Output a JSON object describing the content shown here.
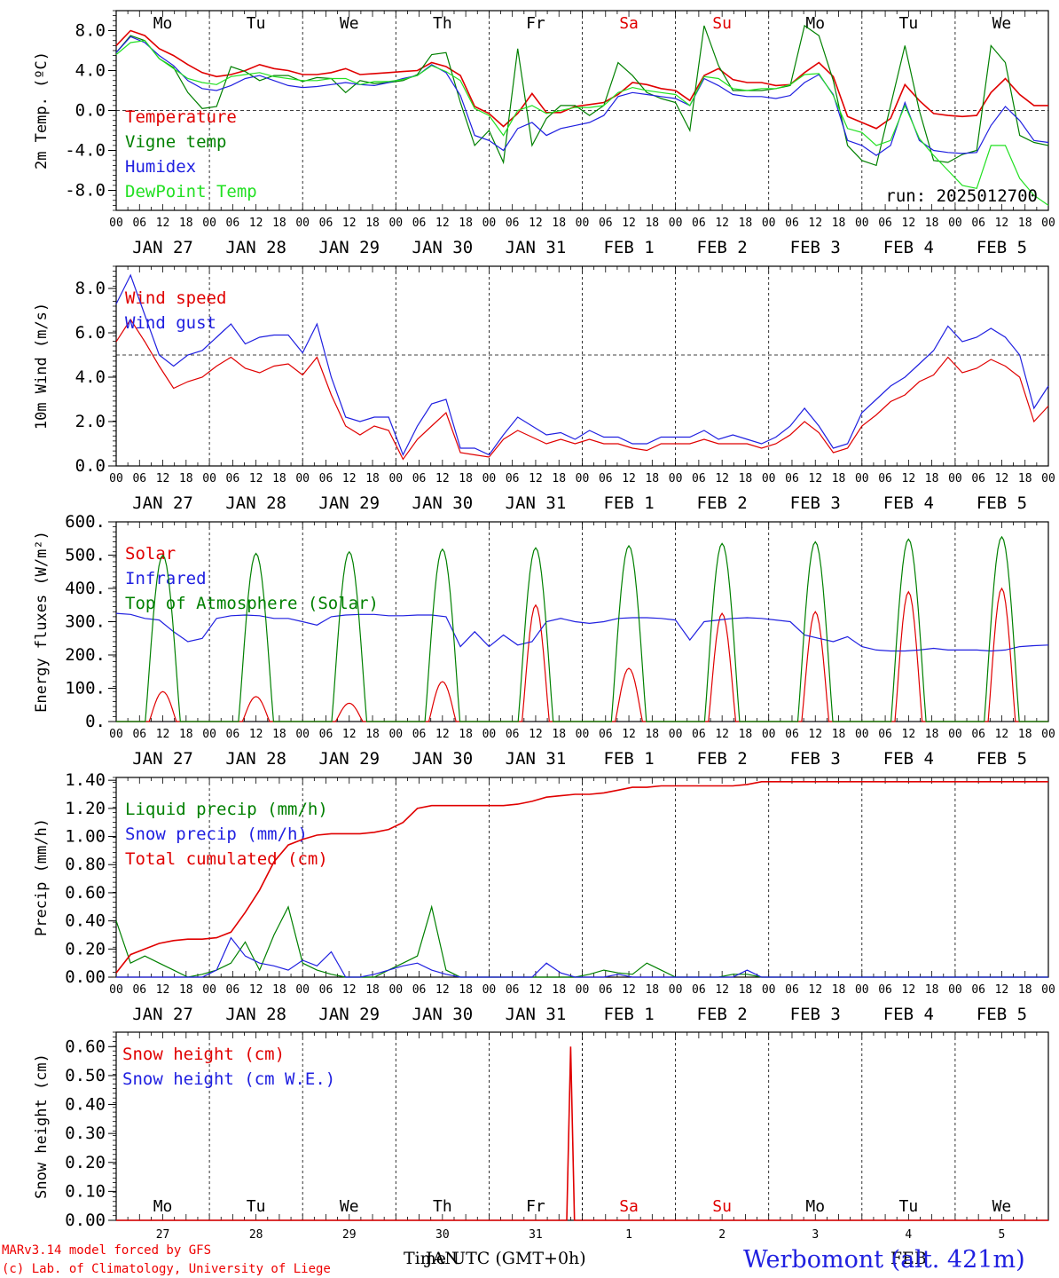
{
  "chart_data": [
    {
      "type": "line",
      "ylabel": "2m Temp. (ºC)",
      "ylim": [
        -10,
        10
      ],
      "yticks": [
        "8.0",
        "4.0",
        "0.0",
        "-4.0",
        "-8.0"
      ],
      "ytick_values": [
        8,
        4,
        0,
        -4,
        -8
      ],
      "ref_line": 0,
      "annotation": "run: 2025012700",
      "day_names": [
        "Mo",
        "Tu",
        "We",
        "Th",
        "Fr",
        "Sa",
        "Su",
        "Mo",
        "Tu",
        "We"
      ],
      "day_name_colors": [
        "#000000",
        "#000000",
        "#000000",
        "#000000",
        "#000000",
        "#e00000",
        "#e00000",
        "#000000",
        "#000000",
        "#000000"
      ],
      "date_labels": [
        "JAN 27",
        "JAN 28",
        "JAN 29",
        "JAN 30",
        "JAN 31",
        "FEB  1",
        "FEB  2",
        "FEB  3",
        "FEB  4",
        "FEB  5"
      ],
      "hour_ticks": [
        "00",
        "06",
        "12",
        "18"
      ],
      "x_hours_start": 0,
      "x_hours_step": 6,
      "series": [
        {
          "name": "Temperature",
          "color": "#e00000",
          "values": [
            6.5,
            8.0,
            7.5,
            6.2,
            5.5,
            4.6,
            3.8,
            3.4,
            3.6,
            4.0,
            4.6,
            4.2,
            4.0,
            3.6,
            3.6,
            3.8,
            4.2,
            3.6,
            3.7,
            3.8,
            3.9,
            4.0,
            4.8,
            4.4,
            3.5,
            0.4,
            -0.3,
            -1.6,
            -0.3,
            1.7,
            -0.2,
            -0.2,
            0.4,
            0.6,
            0.8,
            1.6,
            2.8,
            2.6,
            2.2,
            2.0,
            1.0,
            3.5,
            4.2,
            3.1,
            2.8,
            2.8,
            2.5,
            2.6,
            3.8,
            4.8,
            3.4,
            -0.6,
            -1.2,
            -1.8,
            -0.8,
            2.6,
            1.0,
            -0.3,
            -0.5,
            -0.6,
            -0.5,
            1.8,
            3.2,
            1.6,
            0.5,
            0.5
          ]
        },
        {
          "name": "Vigne temp",
          "color": "#008000",
          "values": [
            5.8,
            7.5,
            7.0,
            5.2,
            4.3,
            1.8,
            0.2,
            0.4,
            4.4,
            3.9,
            3.0,
            3.5,
            3.5,
            2.9,
            3.3,
            3.2,
            1.8,
            3.0,
            2.7,
            2.8,
            3.0,
            3.6,
            5.6,
            5.8,
            0.8,
            -3.5,
            -2.0,
            -5.2,
            6.2,
            -3.5,
            -0.8,
            0.5,
            0.5,
            -0.5,
            0.5,
            4.8,
            3.5,
            1.8,
            1.2,
            0.8,
            -2.0,
            8.5,
            4.5,
            2.0,
            2.0,
            2.0,
            2.2,
            2.5,
            8.5,
            7.5,
            3.0,
            -3.5,
            -5.0,
            -5.5,
            0.5,
            6.5,
            0.0,
            -5.0,
            -5.2,
            -4.4,
            -4.0,
            6.5,
            4.8,
            -2.5,
            -3.2,
            -3.5
          ]
        },
        {
          "name": "Humidex",
          "color": "#2020e0",
          "values": [
            5.8,
            7.4,
            6.8,
            5.5,
            4.5,
            3.0,
            2.2,
            2.0,
            2.5,
            3.2,
            3.5,
            3.0,
            2.5,
            2.3,
            2.4,
            2.6,
            2.8,
            2.6,
            2.5,
            2.8,
            3.2,
            3.5,
            4.6,
            3.8,
            1.5,
            -2.5,
            -3.0,
            -4.0,
            -1.8,
            -1.2,
            -2.5,
            -1.8,
            -1.5,
            -1.2,
            -0.5,
            1.4,
            1.8,
            1.6,
            1.4,
            1.2,
            0.5,
            3.2,
            2.5,
            1.6,
            1.4,
            1.4,
            1.2,
            1.5,
            2.8,
            3.6,
            1.6,
            -3.0,
            -3.5,
            -4.5,
            -3.5,
            0.8,
            -3.0,
            -4.0,
            -4.2,
            -4.3,
            -4.2,
            -1.5,
            0.4,
            -1.0,
            -3.0,
            -3.2
          ]
        },
        {
          "name": "DewPoint Temp",
          "color": "#22e022",
          "values": [
            5.6,
            6.8,
            7.0,
            5.2,
            4.2,
            3.2,
            2.8,
            2.6,
            3.4,
            3.6,
            3.8,
            3.4,
            3.2,
            3.0,
            3.0,
            3.2,
            3.2,
            2.6,
            2.9,
            2.9,
            3.1,
            3.5,
            4.5,
            3.9,
            3.0,
            0.2,
            -0.5,
            -2.5,
            0.0,
            0.5,
            -0.3,
            0.0,
            0.3,
            0.3,
            0.5,
            1.8,
            2.3,
            2.0,
            1.8,
            1.6,
            0.5,
            3.4,
            3.2,
            2.2,
            2.0,
            2.2,
            2.2,
            2.6,
            3.6,
            3.7,
            1.5,
            -1.8,
            -2.2,
            -3.5,
            -3.0,
            0.5,
            -2.8,
            -4.5,
            -6.0,
            -7.5,
            -7.8,
            -3.5,
            -3.5,
            -6.8,
            -8.5,
            -9.5
          ]
        }
      ]
    },
    {
      "type": "line",
      "ylabel": "10m Wind (m/s)",
      "ylim": [
        0,
        9
      ],
      "yticks": [
        "8.0",
        "6.0",
        "4.0",
        "2.0",
        "0.0"
      ],
      "ytick_values": [
        8,
        6,
        4,
        2,
        0
      ],
      "ref_line": 5,
      "date_labels": [
        "JAN 27",
        "JAN 28",
        "JAN 29",
        "JAN 30",
        "JAN 31",
        "FEB  1",
        "FEB  2",
        "FEB  3",
        "FEB  4",
        "FEB  5"
      ],
      "hour_ticks": [
        "00",
        "06",
        "12",
        "18"
      ],
      "series": [
        {
          "name": "Wind speed",
          "color": "#e00000",
          "values": [
            5.6,
            6.6,
            5.6,
            4.5,
            3.5,
            3.8,
            4.0,
            4.5,
            4.9,
            4.4,
            4.2,
            4.5,
            4.6,
            4.1,
            4.9,
            3.2,
            1.8,
            1.4,
            1.8,
            1.6,
            0.3,
            1.2,
            1.8,
            2.4,
            0.6,
            0.5,
            0.4,
            1.2,
            1.6,
            1.3,
            1.0,
            1.2,
            1.0,
            1.2,
            1.0,
            1.0,
            0.8,
            0.7,
            1.0,
            1.0,
            1.0,
            1.2,
            1.0,
            1.0,
            1.0,
            0.8,
            1.0,
            1.4,
            2.0,
            1.5,
            0.6,
            0.8,
            1.8,
            2.3,
            2.9,
            3.2,
            3.8,
            4.1,
            4.9,
            4.2,
            4.4,
            4.8,
            4.5,
            4.0,
            2.0,
            2.7
          ]
        },
        {
          "name": "Wind gust",
          "color": "#2020e0",
          "values": [
            7.3,
            8.6,
            6.8,
            5.0,
            4.5,
            5.0,
            5.2,
            5.8,
            6.4,
            5.5,
            5.8,
            5.9,
            5.9,
            5.1,
            6.4,
            4.0,
            2.2,
            2.0,
            2.2,
            2.2,
            0.5,
            1.8,
            2.8,
            3.0,
            0.8,
            0.8,
            0.5,
            1.4,
            2.2,
            1.8,
            1.4,
            1.5,
            1.2,
            1.6,
            1.3,
            1.3,
            1.0,
            1.0,
            1.3,
            1.3,
            1.3,
            1.6,
            1.2,
            1.4,
            1.2,
            1.0,
            1.3,
            1.8,
            2.6,
            1.8,
            0.8,
            1.0,
            2.4,
            3.0,
            3.6,
            4.0,
            4.6,
            5.2,
            6.3,
            5.6,
            5.8,
            6.2,
            5.8,
            5.0,
            2.6,
            3.6
          ]
        }
      ]
    },
    {
      "type": "line",
      "ylabel": "Energy fluxes (W/m²)",
      "ylim": [
        0,
        600
      ],
      "yticks": [
        "600.",
        "500.",
        "400.",
        "300.",
        "200.",
        "100.",
        "0."
      ],
      "ytick_values": [
        600,
        500,
        400,
        300,
        200,
        100,
        0
      ],
      "date_labels": [
        "JAN 27",
        "JAN 28",
        "JAN 29",
        "JAN 30",
        "JAN 31",
        "FEB  1",
        "FEB  2",
        "FEB  3",
        "FEB  4",
        "FEB  5"
      ],
      "hour_ticks": [
        "00",
        "06",
        "12",
        "18"
      ],
      "series": [
        {
          "name": "Solar",
          "color": "#e00000",
          "peaks": [
            90,
            75,
            55,
            120,
            350,
            160,
            325,
            330,
            390,
            400
          ]
        },
        {
          "name": "Infrared",
          "color": "#2020e0",
          "values": [
            325,
            322,
            310,
            305,
            270,
            240,
            250,
            310,
            318,
            320,
            318,
            310,
            310,
            300,
            290,
            315,
            320,
            322,
            322,
            318,
            318,
            320,
            320,
            315,
            225,
            270,
            225,
            260,
            230,
            240,
            300,
            310,
            300,
            295,
            300,
            310,
            312,
            312,
            310,
            305,
            245,
            300,
            305,
            310,
            312,
            310,
            305,
            300,
            260,
            250,
            240,
            255,
            225,
            215,
            212,
            212,
            215,
            220,
            215,
            215,
            215,
            212,
            215,
            225,
            228,
            230
          ]
        },
        {
          "name": "Top of Atmosphere (Solar)",
          "color": "#008000",
          "peaks": [
            500,
            505,
            510,
            518,
            522,
            528,
            535,
            540,
            548,
            555
          ]
        }
      ]
    },
    {
      "type": "line",
      "ylabel": "Precip (mm/h)",
      "ylim": [
        0,
        1.42
      ],
      "yticks": [
        "1.40",
        "1.20",
        "1.00",
        "0.80",
        "0.60",
        "0.40",
        "0.20",
        "0.00"
      ],
      "ytick_values": [
        1.4,
        1.2,
        1.0,
        0.8,
        0.6,
        0.4,
        0.2,
        0
      ],
      "date_labels": [
        "JAN 27",
        "JAN 28",
        "JAN 29",
        "JAN 30",
        "JAN 31",
        "FEB  1",
        "FEB  2",
        "FEB  3",
        "FEB  4",
        "FEB  5"
      ],
      "hour_ticks": [
        "00",
        "06",
        "12",
        "18"
      ],
      "series": [
        {
          "name": "Liquid precip (mm/h)",
          "color": "#008000",
          "values": [
            0.4,
            0.1,
            0.15,
            0.1,
            0.05,
            0.0,
            0.02,
            0.05,
            0.1,
            0.25,
            0.05,
            0.3,
            0.5,
            0.1,
            0.05,
            0.02,
            0.0,
            0.0,
            0.0,
            0.05,
            0.1,
            0.15,
            0.5,
            0.05,
            0.0,
            0.0,
            0.0,
            0.0,
            0.0,
            0.0,
            0.0,
            0.0,
            0.0,
            0.02,
            0.05,
            0.03,
            0.02,
            0.1,
            0.05,
            0.0,
            0.0,
            0.0,
            0.0,
            0.02,
            0.02,
            0.0,
            0.0,
            0.0,
            0.0,
            0.0,
            0.0,
            0.0,
            0.0,
            0.0,
            0.0,
            0.0,
            0.0,
            0.0,
            0.0,
            0.0,
            0.0,
            0.0,
            0.0,
            0.0,
            0.0,
            0.0
          ]
        },
        {
          "name": "Snow precip (mm/h)",
          "color": "#2020e0",
          "values": [
            0.0,
            0.0,
            0.0,
            0.0,
            0.0,
            0.0,
            0.0,
            0.05,
            0.28,
            0.15,
            0.1,
            0.08,
            0.05,
            0.12,
            0.08,
            0.18,
            0.0,
            0.0,
            0.02,
            0.05,
            0.08,
            0.1,
            0.05,
            0.02,
            0.0,
            0.0,
            0.0,
            0.0,
            0.0,
            0.0,
            0.1,
            0.03,
            0.0,
            0.0,
            0.0,
            0.02,
            0.0,
            0.0,
            0.0,
            0.0,
            0.0,
            0.0,
            0.0,
            0.0,
            0.05,
            0.0,
            0.0,
            0.0,
            0.0,
            0.0,
            0.0,
            0.0,
            0.0,
            0.0,
            0.0,
            0.0,
            0.0,
            0.0,
            0.0,
            0.0,
            0.0,
            0.0,
            0.0,
            0.0,
            0.0,
            0.0
          ]
        },
        {
          "name": "Total cumulated (cm)",
          "color": "#e00000",
          "values": [
            0.03,
            0.16,
            0.2,
            0.24,
            0.26,
            0.27,
            0.27,
            0.28,
            0.32,
            0.46,
            0.62,
            0.82,
            0.94,
            0.98,
            1.01,
            1.02,
            1.02,
            1.02,
            1.03,
            1.05,
            1.1,
            1.2,
            1.22,
            1.22,
            1.22,
            1.22,
            1.22,
            1.22,
            1.23,
            1.25,
            1.28,
            1.29,
            1.3,
            1.3,
            1.31,
            1.33,
            1.35,
            1.35,
            1.36,
            1.36,
            1.36,
            1.36,
            1.36,
            1.36,
            1.37,
            1.39,
            1.39,
            1.39,
            1.39,
            1.39,
            1.39,
            1.39,
            1.39,
            1.39,
            1.39,
            1.39,
            1.39,
            1.39,
            1.39,
            1.39,
            1.39,
            1.39,
            1.39,
            1.39,
            1.39,
            1.39
          ]
        }
      ]
    },
    {
      "type": "line",
      "ylabel": "Snow height (cm)",
      "ylim": [
        0,
        0.65
      ],
      "yticks": [
        "0.60",
        "0.50",
        "0.40",
        "0.30",
        "0.20",
        "0.10",
        "0.00"
      ],
      "ytick_values": [
        0.6,
        0.5,
        0.4,
        0.3,
        0.2,
        0.1,
        0
      ],
      "day_names": [
        "Mo",
        "Tu",
        "We",
        "Th",
        "Fr",
        "Sa",
        "Su",
        "Mo",
        "Tu",
        "We"
      ],
      "day_name_colors": [
        "#000000",
        "#000000",
        "#000000",
        "#000000",
        "#000000",
        "#e00000",
        "#e00000",
        "#000000",
        "#000000",
        "#000000"
      ],
      "day_numbers": [
        "27",
        "28",
        "29",
        "30",
        "31",
        "1",
        "2",
        "3",
        "4",
        "5"
      ],
      "month_labels": [
        "JAN",
        "FEB"
      ],
      "series": [
        {
          "name": "Snow height (cm)",
          "color": "#e00000",
          "spike_hour": 117,
          "spike_value": 0.6
        },
        {
          "name": "Snow height (cm W.E.)",
          "color": "#2020e0",
          "values": []
        }
      ]
    }
  ],
  "footer": {
    "model_line": "MARv3.14 model forced by GFS",
    "credit_line": "(c) Lab. of Climatology, University of Liege",
    "xaxis_title": "Time UTC (GMT+0h)",
    "location": "Werbomont (alt. 421m)"
  }
}
